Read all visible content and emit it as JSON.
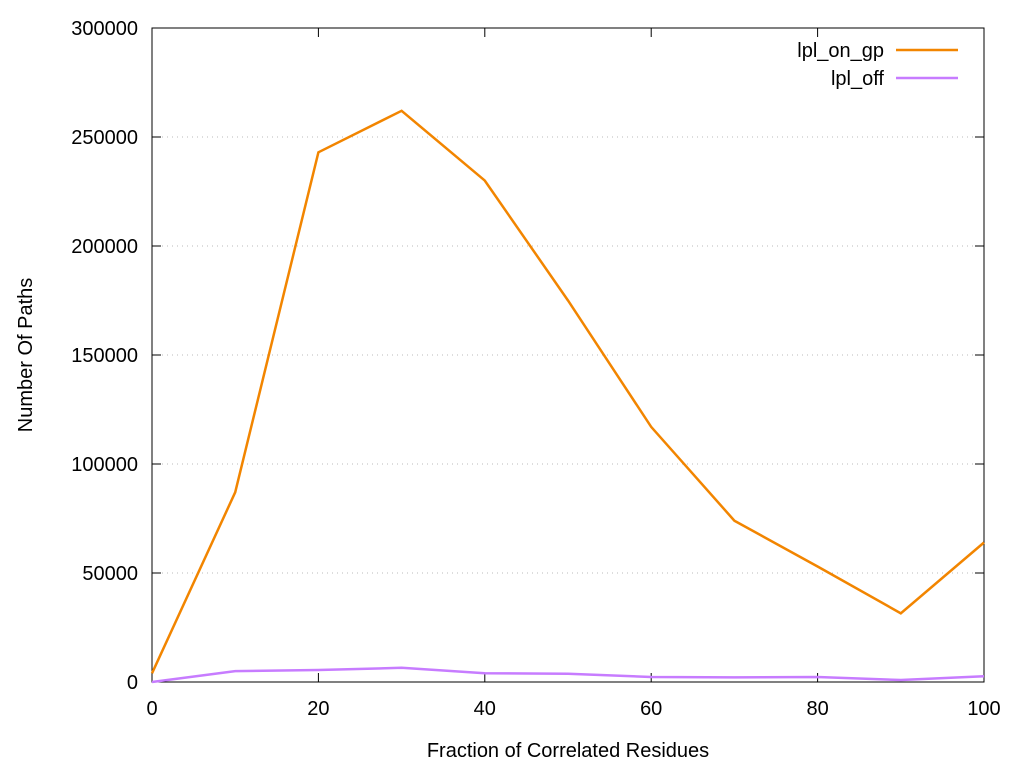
{
  "chart_data": {
    "type": "line",
    "title": "",
    "xlabel": "Fraction of Correlated Residues",
    "ylabel": "Number Of Paths",
    "xlim": [
      0,
      100
    ],
    "ylim": [
      0,
      300000
    ],
    "xticks": [
      0,
      20,
      40,
      60,
      80,
      100
    ],
    "yticks": [
      0,
      50000,
      100000,
      150000,
      200000,
      250000,
      300000
    ],
    "grid": "horizontal dotted",
    "legend_position": "top-right",
    "x": [
      0,
      10,
      20,
      30,
      40,
      50,
      60,
      70,
      80,
      90,
      100
    ],
    "series": [
      {
        "name": "lpl_on_gp",
        "color": "#f28500",
        "values": [
          4000,
          87000,
          243000,
          262000,
          230000,
          175000,
          117000,
          74000,
          53000,
          31500,
          64000
        ]
      },
      {
        "name": "lpl_off",
        "color": "#c77cff",
        "values": [
          0,
          5000,
          5500,
          6500,
          4000,
          3800,
          2300,
          2100,
          2300,
          900,
          2600
        ]
      }
    ]
  }
}
